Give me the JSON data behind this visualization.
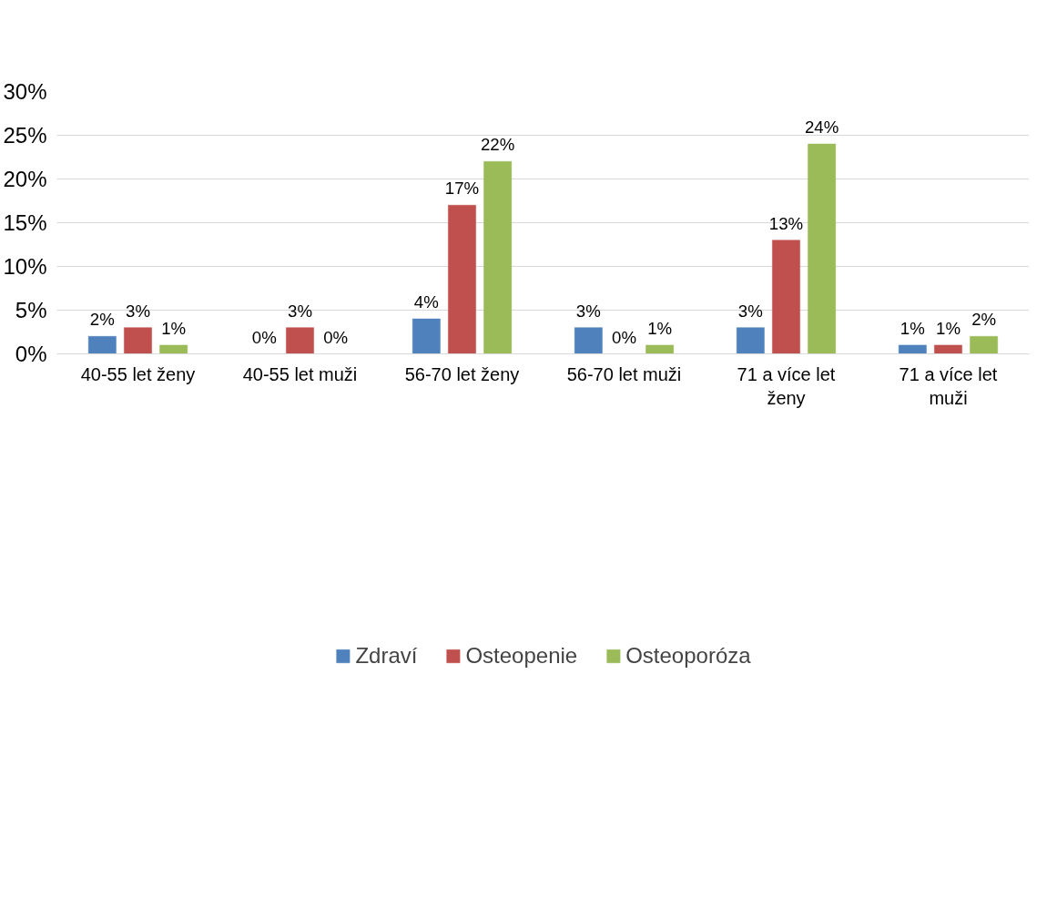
{
  "chart_data": {
    "type": "bar",
    "categories": [
      "40-55 let ženy",
      "40-55 let muži",
      "56-70 let ženy",
      "56-70 let muži",
      "71 a více let ženy",
      "71 a více let muži"
    ],
    "series": [
      {
        "name": "Zdraví",
        "color": "#4f81bd",
        "values": [
          2,
          0,
          4,
          3,
          3,
          1
        ],
        "value_labels": [
          "2%",
          "0%",
          "4%",
          "3%",
          "3%",
          "1%"
        ]
      },
      {
        "name": "Osteopenie",
        "color": "#c0504d",
        "values": [
          3,
          3,
          17,
          0,
          13,
          1
        ],
        "value_labels": [
          "3%",
          "3%",
          "17%",
          "0%",
          "13%",
          "1%"
        ]
      },
      {
        "name": "Osteoporóza",
        "color": "#9bbb59",
        "values": [
          1,
          0,
          22,
          1,
          24,
          2
        ],
        "value_labels": [
          "1%",
          "0%",
          "22%",
          "1%",
          "24%",
          "2%"
        ]
      }
    ],
    "ylim": [
      0,
      30
    ],
    "yticks": [
      {
        "value": 0,
        "label": "0%"
      },
      {
        "value": 5,
        "label": "5%"
      },
      {
        "value": 10,
        "label": "10%"
      },
      {
        "value": 15,
        "label": "15%"
      },
      {
        "value": 20,
        "label": "20%"
      },
      {
        "value": 25,
        "label": "25%"
      },
      {
        "value": 30,
        "label": "30%"
      }
    ],
    "grid": "y",
    "legend": "bottom"
  }
}
